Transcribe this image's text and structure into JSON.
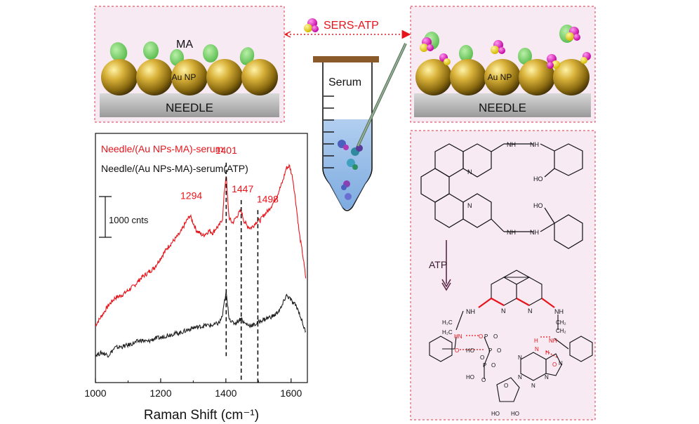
{
  "needle_left": {
    "ma_label": "MA",
    "np_label": "Au NP",
    "needle_label": "NEEDLE"
  },
  "needle_right": {
    "np_label": "Au NP",
    "needle_label": "NEEDLE"
  },
  "sers_label": "SERS-ATP",
  "tube": {
    "label": "Serum"
  },
  "chem": {
    "atp_label": "ATP",
    "nh_top": "NH",
    "nh_top2": "NH",
    "oh_top": "HO",
    "oh_mid": "HO",
    "nh_bot": "NH",
    "nh_bot2": "NH",
    "n1": "N",
    "n2": "N",
    "b_nh_left": "NH",
    "b_nh_right": "NH",
    "b_n_left": "N",
    "b_n_right": "N",
    "b_h2c_left": "H₂C",
    "b_h2c_left2": "H₂C",
    "b_ch2_right": "CH₂",
    "b_ch2_right2": "CH₂",
    "b_hn": "HN",
    "b_o1": "O",
    "b_o2": "O",
    "b_h1": "H",
    "b_n3": "N",
    "b_h2": "H",
    "b_nh3": "NH",
    "b_o3": "O",
    "p1": "P",
    "p2": "P",
    "p3": "P",
    "b_o_p1": "O",
    "b_o_p2": "O",
    "b_o_p3": "O",
    "b_ho1": "HO",
    "b_ho2": "HO",
    "b_ho3": "HO",
    "b_ho4": "HO",
    "b_o_chain1": "O",
    "b_o_chain2": "O",
    "b_o_sugar": "O",
    "b_n_ad1": "N",
    "b_n_ad2": "N",
    "b_n_ad3": "N",
    "b_n_ad4": "N",
    "b_n_ad5": "N"
  },
  "chart_data": {
    "type": "line",
    "xlabel": "Raman Shift (cm⁻¹)",
    "x_ticks": [
      1000,
      1200,
      1400,
      1600
    ],
    "xlim": [
      1000,
      1650
    ],
    "scale_bar_label": "1000 cnts",
    "series": [
      {
        "name": "Needle/(Au NPs-MA)-serum",
        "color": "#e8141b",
        "x": [
          1000,
          1020,
          1040,
          1060,
          1080,
          1100,
          1120,
          1140,
          1160,
          1180,
          1200,
          1220,
          1240,
          1260,
          1280,
          1290,
          1300,
          1310,
          1320,
          1330,
          1340,
          1350,
          1360,
          1370,
          1380,
          1390,
          1395,
          1401,
          1405,
          1410,
          1420,
          1430,
          1440,
          1447,
          1455,
          1465,
          1475,
          1485,
          1490,
          1498,
          1505,
          1515,
          1530,
          1545,
          1560,
          1575,
          1585,
          1595,
          1605,
          1615,
          1625,
          1635,
          1645
        ],
        "y": [
          1.15,
          1.35,
          1.55,
          1.7,
          1.75,
          1.85,
          1.95,
          2.1,
          2.2,
          2.3,
          2.5,
          2.7,
          2.85,
          3.0,
          3.25,
          3.35,
          3.2,
          3.05,
          3.0,
          2.95,
          3.0,
          3.05,
          3.0,
          3.1,
          3.15,
          3.3,
          3.8,
          4.2,
          3.7,
          3.3,
          3.2,
          3.3,
          3.4,
          3.45,
          3.25,
          3.15,
          3.1,
          3.15,
          3.2,
          3.25,
          3.25,
          3.35,
          3.45,
          3.6,
          3.8,
          4.05,
          4.3,
          4.35,
          4.1,
          3.6,
          3.0,
          2.6,
          2.1
        ]
      },
      {
        "name": "Needle/(Au NPs-MA)-serum(ATP)",
        "color": "#222222",
        "x": [
          1000,
          1020,
          1040,
          1060,
          1080,
          1100,
          1120,
          1140,
          1160,
          1180,
          1200,
          1220,
          1240,
          1260,
          1280,
          1300,
          1320,
          1340,
          1360,
          1380,
          1390,
          1395,
          1401,
          1405,
          1410,
          1420,
          1430,
          1440,
          1447,
          1455,
          1470,
          1485,
          1498,
          1510,
          1530,
          1550,
          1570,
          1585,
          1595,
          1605,
          1615,
          1625,
          1635,
          1645
        ],
        "y": [
          0.55,
          0.6,
          0.55,
          0.7,
          0.72,
          0.75,
          0.8,
          0.85,
          0.82,
          0.88,
          0.9,
          0.95,
          0.98,
          1.0,
          1.05,
          1.1,
          1.12,
          1.15,
          1.15,
          1.2,
          1.35,
          1.6,
          1.8,
          1.55,
          1.3,
          1.2,
          1.2,
          1.25,
          1.3,
          1.2,
          1.15,
          1.15,
          1.2,
          1.25,
          1.3,
          1.35,
          1.5,
          1.75,
          1.7,
          1.6,
          1.55,
          1.4,
          1.2,
          1.0
        ]
      }
    ],
    "annotations": [
      {
        "label": "1294",
        "x": 1294
      },
      {
        "label": "1401",
        "x": 1401
      },
      {
        "label": "1447",
        "x": 1447
      },
      {
        "label": "1498",
        "x": 1498
      }
    ]
  }
}
